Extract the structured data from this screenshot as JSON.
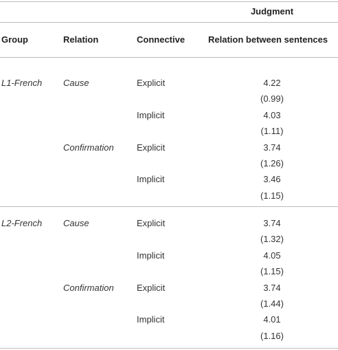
{
  "header": {
    "title": "Judgment",
    "columns": [
      "Group",
      "Relation",
      "Connective",
      "Relation between sentences"
    ]
  },
  "groups": [
    {
      "name": "L1-French",
      "relations": [
        {
          "name": "Cause",
          "connectives": [
            {
              "name": "Explicit",
              "mean": "4.22",
              "sd": "(0.99)"
            },
            {
              "name": "Implicit",
              "mean": "4.03",
              "sd": "(1.11)"
            }
          ]
        },
        {
          "name": "Confirmation",
          "connectives": [
            {
              "name": "Explicit",
              "mean": "3.74",
              "sd": "(1.26)"
            },
            {
              "name": "Implicit",
              "mean": "3.46",
              "sd": "(1.15)"
            }
          ]
        }
      ]
    },
    {
      "name": "L2-French",
      "relations": [
        {
          "name": "Cause",
          "connectives": [
            {
              "name": "Explicit",
              "mean": "3.74",
              "sd": "(1.32)"
            },
            {
              "name": "Implicit",
              "mean": "4.05",
              "sd": "(1.15)"
            }
          ]
        },
        {
          "name": "Confirmation",
          "connectives": [
            {
              "name": "Explicit",
              "mean": "3.74",
              "sd": "(1.44)"
            },
            {
              "name": "Implicit",
              "mean": "4.01",
              "sd": "(1.16)"
            }
          ]
        }
      ]
    }
  ]
}
